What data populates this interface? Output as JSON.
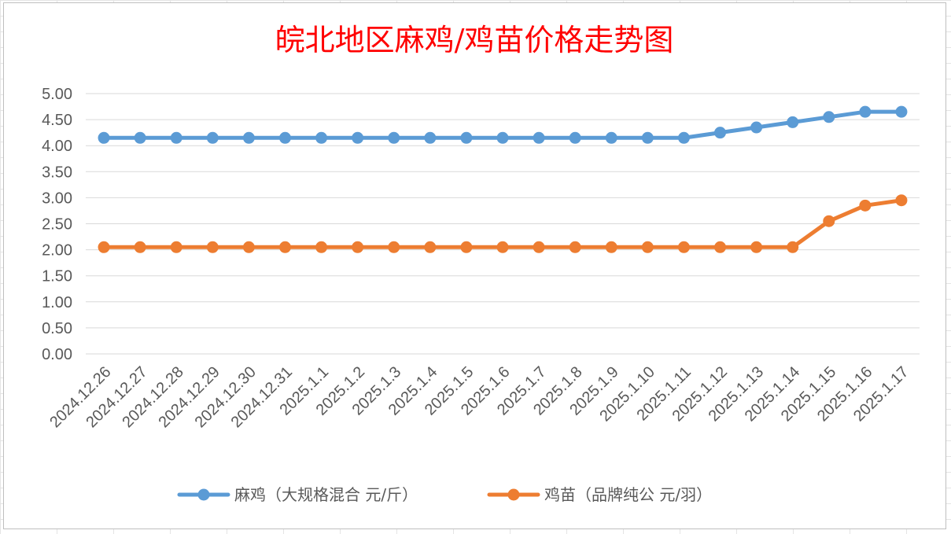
{
  "chart_data": {
    "type": "line",
    "title": "皖北地区麻鸡/鸡苗价格走势图",
    "categories": [
      "2024.12.26",
      "2024.12.27",
      "2024.12.28",
      "2024.12.29",
      "2024.12.30",
      "2024.12.31",
      "2025.1.1",
      "2025.1.2",
      "2025.1.3",
      "2025.1.4",
      "2025.1.5",
      "2025.1.6",
      "2025.1.7",
      "2025.1.8",
      "2025.1.9",
      "2025.1.10",
      "2025.1.11",
      "2025.1.12",
      "2025.1.13",
      "2025.1.14",
      "2025.1.15",
      "2025.1.16",
      "2025.1.17"
    ],
    "y_ticks": [
      "0.00",
      "0.50",
      "1.00",
      "1.50",
      "2.00",
      "2.50",
      "3.00",
      "3.50",
      "4.00",
      "4.50",
      "5.00"
    ],
    "ylim": [
      0,
      5
    ],
    "grid": true,
    "legend_position": "bottom",
    "series": [
      {
        "name": "麻鸡（大规格混合 元/斤）",
        "color": "#5b9bd5",
        "values": [
          4.15,
          4.15,
          4.15,
          4.15,
          4.15,
          4.15,
          4.15,
          4.15,
          4.15,
          4.15,
          4.15,
          4.15,
          4.15,
          4.15,
          4.15,
          4.15,
          4.15,
          4.25,
          4.35,
          4.45,
          4.55,
          4.65,
          4.65
        ]
      },
      {
        "name": "鸡苗（品牌纯公 元/羽）",
        "color": "#ed7d31",
        "values": [
          2.05,
          2.05,
          2.05,
          2.05,
          2.05,
          2.05,
          2.05,
          2.05,
          2.05,
          2.05,
          2.05,
          2.05,
          2.05,
          2.05,
          2.05,
          2.05,
          2.05,
          2.05,
          2.05,
          2.05,
          2.55,
          2.85,
          2.95
        ]
      }
    ]
  }
}
